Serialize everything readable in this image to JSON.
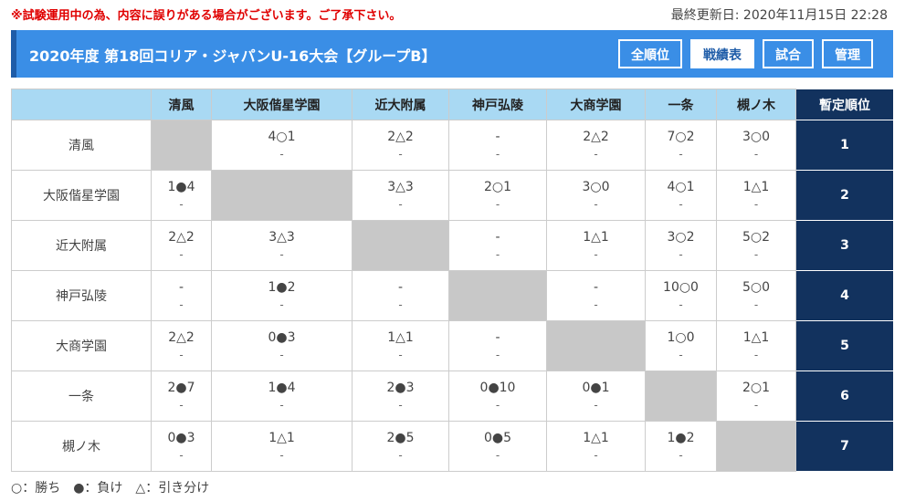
{
  "notice": "※試験運用中の為、内容に誤りがある場合がございます。ご了承下さい。",
  "updated": "最終更新日: 2020年11月15日 22:28",
  "header": {
    "title": "2020年度 第18回コリア・ジャパンU-16大会【グループB】",
    "buttons": [
      "全順位",
      "戦績表",
      "試合",
      "管理"
    ]
  },
  "table": {
    "columns": [
      "清風",
      "大阪偕星学園",
      "近大附属",
      "神戸弘陵",
      "大商学園",
      "一条",
      "槻ノ木"
    ],
    "rank_header": "暫定順位",
    "rows": [
      {
        "team": "清風",
        "cells": [
          null,
          [
            "4○1",
            "-"
          ],
          [
            "2△2",
            "-"
          ],
          [
            "-",
            "-"
          ],
          [
            "2△2",
            "-"
          ],
          [
            "7○2",
            "-"
          ],
          [
            "3○0",
            "-"
          ]
        ],
        "rank": 1
      },
      {
        "team": "大阪偕星学園",
        "cells": [
          [
            "1●4",
            "-"
          ],
          null,
          [
            "3△3",
            "-"
          ],
          [
            "2○1",
            "-"
          ],
          [
            "3○0",
            "-"
          ],
          [
            "4○1",
            "-"
          ],
          [
            "1△1",
            "-"
          ]
        ],
        "rank": 2
      },
      {
        "team": "近大附属",
        "cells": [
          [
            "2△2",
            "-"
          ],
          [
            "3△3",
            "-"
          ],
          null,
          [
            "-",
            "-"
          ],
          [
            "1△1",
            "-"
          ],
          [
            "3○2",
            "-"
          ],
          [
            "5○2",
            "-"
          ]
        ],
        "rank": 3
      },
      {
        "team": "神戸弘陵",
        "cells": [
          [
            "-",
            "-"
          ],
          [
            "1●2",
            "-"
          ],
          [
            "-",
            "-"
          ],
          null,
          [
            "-",
            "-"
          ],
          [
            "10○0",
            "-"
          ],
          [
            "5○0",
            "-"
          ]
        ],
        "rank": 4
      },
      {
        "team": "大商学園",
        "cells": [
          [
            "2△2",
            "-"
          ],
          [
            "0●3",
            "-"
          ],
          [
            "1△1",
            "-"
          ],
          [
            "-",
            "-"
          ],
          null,
          [
            "1○0",
            "-"
          ],
          [
            "1△1",
            "-"
          ]
        ],
        "rank": 5
      },
      {
        "team": "一条",
        "cells": [
          [
            "2●7",
            "-"
          ],
          [
            "1●4",
            "-"
          ],
          [
            "2●3",
            "-"
          ],
          [
            "0●10",
            "-"
          ],
          [
            "0●1",
            "-"
          ],
          null,
          [
            "2○1",
            "-"
          ]
        ],
        "rank": 6
      },
      {
        "team": "槻ノ木",
        "cells": [
          [
            "0●3",
            "-"
          ],
          [
            "1△1",
            "-"
          ],
          [
            "2●5",
            "-"
          ],
          [
            "0●5",
            "-"
          ],
          [
            "1△1",
            "-"
          ],
          [
            "1●2",
            "-"
          ],
          null
        ],
        "rank": 7
      }
    ]
  },
  "legend": "○：勝ち　●：負け　△：引き分け"
}
